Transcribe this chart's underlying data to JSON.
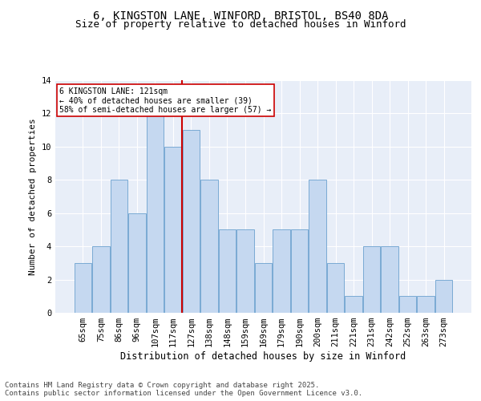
{
  "title1": "6, KINGSTON LANE, WINFORD, BRISTOL, BS40 8DA",
  "title2": "Size of property relative to detached houses in Winford",
  "xlabel": "Distribution of detached houses by size in Winford",
  "ylabel": "Number of detached properties",
  "categories": [
    "65sqm",
    "75sqm",
    "86sqm",
    "96sqm",
    "107sqm",
    "117sqm",
    "127sqm",
    "138sqm",
    "148sqm",
    "159sqm",
    "169sqm",
    "179sqm",
    "190sqm",
    "200sqm",
    "211sqm",
    "221sqm",
    "231sqm",
    "242sqm",
    "252sqm",
    "263sqm",
    "273sqm"
  ],
  "values": [
    3,
    4,
    8,
    6,
    12,
    10,
    11,
    8,
    5,
    5,
    3,
    5,
    5,
    8,
    3,
    1,
    4,
    4,
    1,
    1,
    2
  ],
  "bar_color": "#c5d8f0",
  "bar_edge_color": "#7aaad4",
  "vline_x": 5.5,
  "vline_color": "#cc0000",
  "annotation_text": "6 KINGSTON LANE: 121sqm\n← 40% of detached houses are smaller (39)\n58% of semi-detached houses are larger (57) →",
  "annotation_box_color": "#ffffff",
  "annotation_box_edge": "#cc0000",
  "ylim": [
    0,
    14
  ],
  "yticks": [
    0,
    2,
    4,
    6,
    8,
    10,
    12,
    14
  ],
  "background_color": "#e8eef8",
  "grid_color": "#ffffff",
  "footer": "Contains HM Land Registry data © Crown copyright and database right 2025.\nContains public sector information licensed under the Open Government Licence v3.0.",
  "title_fontsize": 10,
  "subtitle_fontsize": 9,
  "tick_fontsize": 7.5,
  "ylabel_fontsize": 8,
  "xlabel_fontsize": 8.5,
  "footer_fontsize": 6.5
}
